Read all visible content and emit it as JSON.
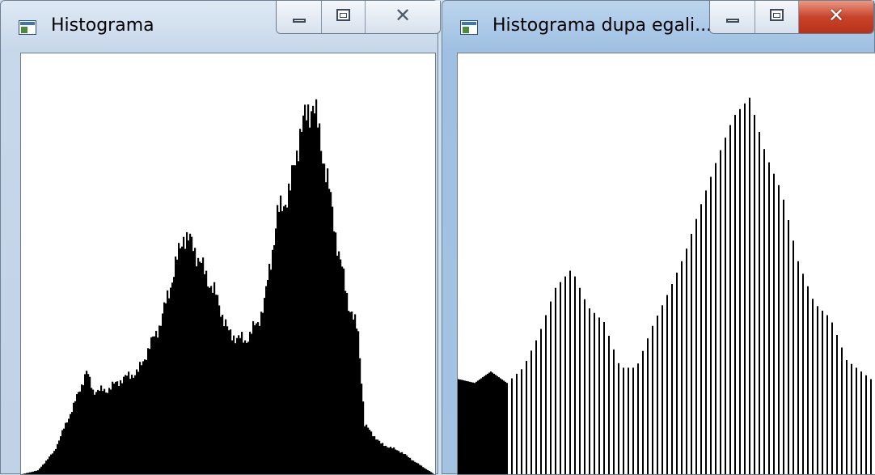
{
  "windows": [
    {
      "title": "Histograma",
      "active": false,
      "controls": {
        "minimize": "minimize-icon",
        "maximize": "maximize-icon",
        "close": "close-icon"
      },
      "histogram": {
        "type": "bar",
        "bins": 256,
        "max_value": 1.0,
        "profile": [
          [
            0,
            0.0
          ],
          [
            10,
            0.01
          ],
          [
            20,
            0.06
          ],
          [
            32,
            0.18
          ],
          [
            40,
            0.27
          ],
          [
            44,
            0.22
          ],
          [
            52,
            0.22
          ],
          [
            62,
            0.25
          ],
          [
            72,
            0.27
          ],
          [
            86,
            0.4
          ],
          [
            100,
            0.63
          ],
          [
            106,
            0.6
          ],
          [
            112,
            0.54
          ],
          [
            120,
            0.47
          ],
          [
            128,
            0.37
          ],
          [
            138,
            0.35
          ],
          [
            146,
            0.4
          ],
          [
            150,
            0.45
          ],
          [
            158,
            0.68
          ],
          [
            166,
            0.75
          ],
          [
            172,
            0.9
          ],
          [
            180,
            0.98
          ],
          [
            188,
            0.8
          ],
          [
            196,
            0.58
          ],
          [
            202,
            0.45
          ],
          [
            208,
            0.37
          ],
          [
            212,
            0.13
          ],
          [
            222,
            0.08
          ],
          [
            234,
            0.06
          ],
          [
            244,
            0.03
          ],
          [
            255,
            0.0
          ]
        ]
      }
    },
    {
      "title": "Histograma dupa egali...",
      "active": true,
      "controls": {
        "minimize": "minimize-icon",
        "maximize": "maximize-icon",
        "close": "close-icon"
      },
      "histogram": {
        "type": "bar",
        "bins": 256,
        "max_value": 1.0,
        "profile": [
          [
            0,
            0.25
          ],
          [
            10,
            0.24
          ],
          [
            20,
            0.27
          ],
          [
            30,
            0.24
          ],
          [
            40,
            0.28
          ],
          [
            50,
            0.37
          ],
          [
            60,
            0.49
          ],
          [
            70,
            0.54
          ],
          [
            80,
            0.44
          ],
          [
            90,
            0.4
          ],
          [
            100,
            0.28
          ],
          [
            110,
            0.28
          ],
          [
            120,
            0.39
          ],
          [
            130,
            0.48
          ],
          [
            140,
            0.58
          ],
          [
            150,
            0.71
          ],
          [
            160,
            0.83
          ],
          [
            170,
            0.94
          ],
          [
            180,
            0.99
          ],
          [
            190,
            0.84
          ],
          [
            200,
            0.74
          ],
          [
            210,
            0.56
          ],
          [
            220,
            0.45
          ],
          [
            230,
            0.41
          ],
          [
            240,
            0.3
          ],
          [
            255,
            0.25
          ]
        ]
      }
    }
  ]
}
